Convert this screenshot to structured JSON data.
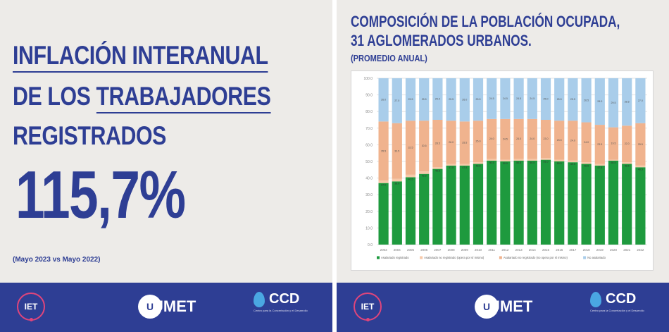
{
  "left_panel": {
    "headline_line1": "INFLACIÓN INTERANUAL",
    "headline_line2_prefix": "DE LOS ",
    "headline_line2_underlined": "TRABAJADORES",
    "headline_line3": "REGISTRADOS",
    "big_value": "115,7%",
    "footnote": "(Mayo 2023 vs Mayo 2022)"
  },
  "right_panel": {
    "title_line1": "COMPOSICIÓN DE LA POBLACIÓN OCUPADA,",
    "title_line2": "31 AGLOMERADOS URBANOS.",
    "subtitle": "(PROMEDIO ANUAL)"
  },
  "footer": {
    "logo_iet": "IET",
    "logo_umet": "UMET",
    "logo_umet_mark": "U",
    "logo_ccd": "CCD",
    "logo_ccd_caption": "Centro para la Concertación y el Desarrollo"
  },
  "colors": {
    "navy": "#2e3e94",
    "registered": "#1e9a3e",
    "unregistered_employer": "#f7c9a9",
    "unregistered_self": "#f0b38e",
    "non_salaried": "#a9cdea"
  },
  "chart_data": {
    "type": "bar",
    "stacked": true,
    "categories": [
      "2003",
      "2004",
      "2005",
      "2006",
      "2007",
      "2008",
      "2009",
      "2010",
      "2011",
      "2012",
      "2013",
      "2014",
      "2015",
      "2016",
      "2017",
      "2018",
      "2019",
      "2020",
      "2021",
      "2022"
    ],
    "series": [
      {
        "name": "Asalariado registrado",
        "color": "#1e9a3e",
        "values": [
          37.0,
          38.0,
          40.5,
          42.5,
          45.5,
          47.5,
          47.5,
          48.5,
          50.5,
          50.0,
          50.5,
          50.5,
          51.0,
          50.0,
          49.5,
          48.5,
          47.5,
          50.5,
          48.5,
          46.5
        ]
      },
      {
        "name": "Asalariado no registrado (opera por sí mismo)",
        "color": "#f7c9a9",
        "values": [
          1.5,
          1.5,
          1.5,
          1.5,
          1.0,
          1.0,
          1.0,
          1.0,
          1.0,
          1.0,
          1.0,
          1.0,
          1.0,
          1.0,
          1.0,
          1.0,
          1.0,
          0.5,
          1.0,
          1.0
        ]
      },
      {
        "name": "Asalariado no registrado (no opera por sí mismo)",
        "color": "#f0b38e",
        "values": [
          35.5,
          33.5,
          32.5,
          30.5,
          28.5,
          26.0,
          25.5,
          25.0,
          24.0,
          24.5,
          24.0,
          24.0,
          23.0,
          23.5,
          24.0,
          24.0,
          23.5,
          19.5,
          22.0,
          25.5
        ]
      },
      {
        "name": "No asalariado",
        "color": "#a9cdea",
        "values": [
          26.0,
          27.0,
          25.5,
          25.5,
          25.0,
          25.5,
          26.0,
          25.5,
          24.5,
          24.5,
          24.5,
          24.5,
          25.0,
          25.5,
          25.5,
          26.5,
          28.0,
          29.5,
          28.5,
          27.0
        ]
      }
    ],
    "ylim": [
      0,
      100
    ],
    "yticks": [
      "0.0",
      "10.0",
      "20.0",
      "30.0",
      "40.0",
      "50.0",
      "60.0",
      "70.0",
      "80.0",
      "90.0",
      "100.0"
    ],
    "grid": true,
    "legend_position": "bottom"
  }
}
